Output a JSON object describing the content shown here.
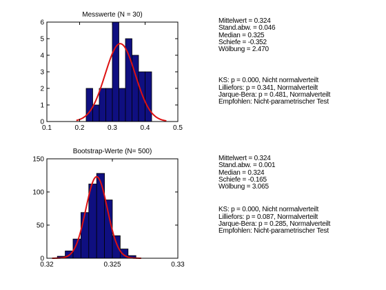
{
  "chart_data": [
    {
      "type": "bar",
      "title": "Messwerte (N = 30)",
      "xlabel": "",
      "ylabel": "",
      "xlim": [
        0.1,
        0.5
      ],
      "ylim": [
        0,
        6
      ],
      "xticks": [
        "0.1",
        "0.2",
        "0.3",
        "0.4",
        "0.5"
      ],
      "yticks": [
        "0",
        "1",
        "2",
        "3",
        "4",
        "5",
        "6"
      ],
      "bin_edges": [
        0.22,
        0.24,
        0.26,
        0.28,
        0.3,
        0.32,
        0.34,
        0.36,
        0.38,
        0.4,
        0.42
      ],
      "values": [
        2,
        1,
        2,
        2,
        6,
        2,
        5,
        4,
        3,
        3
      ],
      "fit_curve": {
        "type": "normal",
        "mean": 0.324,
        "sd": 0.046,
        "peak": 4.7,
        "x_range": [
          0.19,
          0.465
        ]
      },
      "stats": {
        "mean": "Mittelwert = 0.324",
        "sd": "Stand.abw. = 0.046",
        "median": "Median = 0.325",
        "skew": "Schiefe = -0.352",
        "kurt": "Wölbung = 2.470",
        "ks": "KS: p = 0.000, Nicht normalverteilt",
        "lilliefors": "Lilliefors: p = 0.341, Normalverteilt",
        "jb": "Jarque-Bera: p = 0.481, Normalverteilt",
        "recommendation": "Empfohlen: Nicht-parametrischer Test"
      }
    },
    {
      "type": "bar",
      "title": "Bootstrap-Werte (N= 500)",
      "xlabel": "",
      "ylabel": "",
      "xlim": [
        0.32,
        0.33
      ],
      "ylim": [
        0,
        150
      ],
      "xticks": [
        "0.32",
        "0.325",
        "0.33"
      ],
      "yticks": [
        "0",
        "50",
        "100",
        "150"
      ],
      "bin_edges": [
        0.3208,
        0.3214,
        0.322,
        0.3226,
        0.3232,
        0.3238,
        0.3244,
        0.325,
        0.3256,
        0.3262,
        0.3268
      ],
      "values": [
        3,
        11,
        29,
        69,
        112,
        128,
        88,
        34,
        14,
        4
      ],
      "fit_curve": {
        "type": "normal",
        "mean": 0.3238,
        "sd": 0.00082,
        "peak": 123,
        "x_range": [
          0.3204,
          0.3272
        ]
      },
      "stats": {
        "mean": "Mittelwert = 0.324",
        "sd": "Stand.abw. = 0.001",
        "median": "Median = 0.324",
        "skew": "Schiefe = -0.165",
        "kurt": "Wölbung = 3.065",
        "ks": "KS: p = 0.000, Nicht normalverteilt",
        "lilliefors": "Lilliefors: p = 0.087, Normalverteilt",
        "jb": "Jarque-Bera: p = 0.285, Normalverteilt",
        "recommendation": "Empfohlen: Nicht-parametrischer Test"
      }
    }
  ],
  "colors": {
    "bar_fill": "#0f0f80",
    "bar_edge": "#000000",
    "curve": "#dd1111",
    "axis": "#000000"
  }
}
